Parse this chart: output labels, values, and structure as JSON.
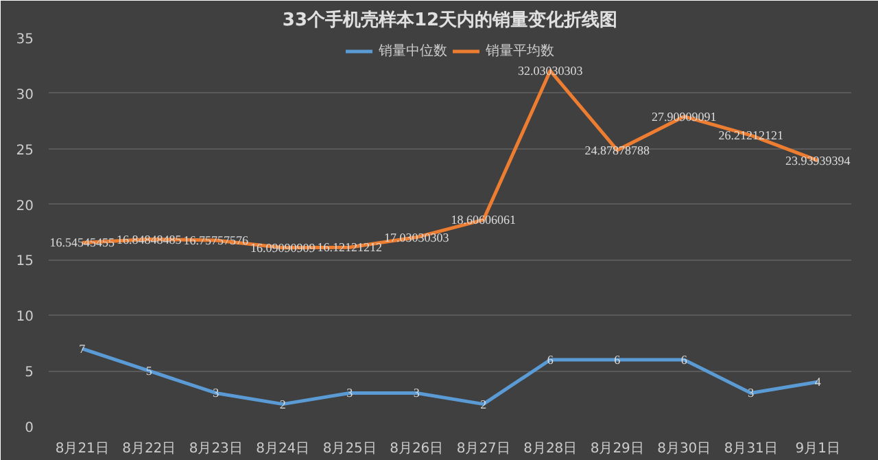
{
  "chart_data": {
    "type": "line",
    "title": "33个手机壳样本12天内的销量变化折线图",
    "categories": [
      "8月21日",
      "8月22日",
      "8月23日",
      "8月24日",
      "8月25日",
      "8月26日",
      "8月27日",
      "8月28日",
      "8月29日",
      "8月30日",
      "8月31日",
      "9月1日"
    ],
    "series": [
      {
        "name": "销量中位数",
        "color": "#5b9bd5",
        "values": [
          7,
          5,
          3,
          2,
          3,
          3,
          2,
          6,
          6,
          6,
          3,
          4
        ]
      },
      {
        "name": "销量平均数",
        "color": "#ed7d31",
        "values": [
          16.54545455,
          16.84848485,
          16.75757576,
          16.09090909,
          16.12121212,
          17.03030303,
          18.60606061,
          32.03030303,
          24.87878788,
          27.90909091,
          26.21212121,
          23.93939394
        ]
      }
    ],
    "ylim": [
      0,
      35
    ],
    "yticks": [
      0,
      5,
      10,
      15,
      20,
      25,
      30,
      35
    ],
    "grid": "y",
    "legend": "top",
    "data_labels": true,
    "marker": "none",
    "line_style": "solid"
  }
}
